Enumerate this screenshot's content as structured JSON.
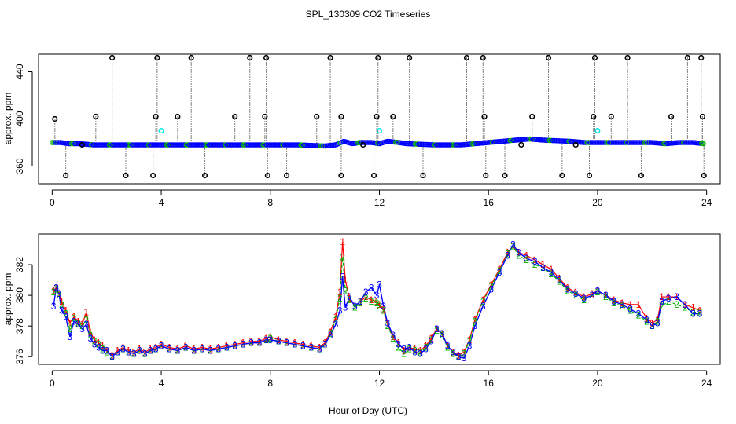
{
  "title": "SPL_130309  CO2 Timeseries",
  "colors": {
    "background": "#ffffff",
    "axis": "#000000",
    "point_blue": "#0000ff",
    "point_green": "#00b000",
    "point_cyan": "#00e5e5",
    "outlier": "#000000",
    "series_1": "#ff0000",
    "series_2": "#00b000",
    "series_3": "#0000ff"
  },
  "chart_data": [
    {
      "type": "scatter",
      "panel": "top",
      "xlabel": "",
      "ylabel": "approx. ppm",
      "xlim": [
        -0.5,
        24.5
      ],
      "ylim": [
        345,
        455
      ],
      "x_ticks": [
        0,
        4,
        8,
        12,
        16,
        20,
        24
      ],
      "x_tick_labels": [
        "0",
        "4",
        "8",
        "12",
        "16",
        "20",
        "24"
      ],
      "y_ticks": [
        360,
        400,
        440
      ],
      "y_tick_labels": [
        "360",
        "400",
        "440"
      ],
      "baseline": {
        "x": [
          0,
          0.3,
          0.6,
          1,
          1.5,
          2,
          3,
          4,
          5,
          6,
          7,
          7.8,
          8.5,
          9,
          10,
          10.4,
          10.7,
          11,
          11.3,
          11.7,
          12,
          12.3,
          12.7,
          13,
          14,
          15,
          15.5,
          16,
          17,
          17.5,
          18,
          19,
          19.5,
          20,
          21,
          22,
          22.5,
          23,
          23.5,
          23.9
        ],
        "y": [
          380,
          380,
          379,
          379,
          378,
          378,
          378,
          378,
          378,
          378,
          378,
          378,
          378,
          378,
          377,
          378,
          381,
          379,
          380,
          380,
          379,
          381,
          380,
          379,
          378,
          378,
          379,
          380,
          382,
          383,
          382,
          381,
          380,
          380,
          380,
          380,
          379,
          380,
          380,
          379
        ]
      },
      "outliers": {
        "x": [
          0.1,
          1.6,
          2.2,
          3.8,
          3.85,
          4.6,
          5.1,
          6.7,
          7.25,
          7.8,
          7.85,
          9.7,
          10.2,
          10.6,
          11.9,
          11.95,
          12.5,
          13.1,
          15.2,
          15.8,
          15.85,
          17.6,
          18.2,
          19.85,
          19.9,
          20.5,
          21.1,
          22.7,
          23.3,
          23.8,
          23.85,
          0.5,
          2.7,
          3.7,
          5.6,
          7.9,
          8.6,
          10.6,
          11.8,
          13.6,
          15.9,
          16.6,
          18.7,
          19.7,
          21.6,
          23.9,
          1.1,
          11.4,
          17.2,
          19.2
        ],
        "y": [
          400,
          402,
          452,
          402,
          452,
          402,
          452,
          402,
          452,
          402,
          452,
          402,
          452,
          402,
          402,
          452,
          402,
          452,
          452,
          452,
          402,
          402,
          452,
          402,
          452,
          402,
          452,
          402,
          452,
          452,
          402,
          352,
          352,
          352,
          352,
          352,
          352,
          352,
          352,
          352,
          352,
          352,
          352,
          352,
          352,
          352,
          378,
          378,
          378,
          378
        ]
      },
      "cyan_points": {
        "x": [
          4.0,
          12.0,
          20.0
        ],
        "y": [
          390,
          390,
          390
        ]
      }
    },
    {
      "type": "line",
      "panel": "bottom",
      "xlabel": "Hour of Day (UTC)",
      "ylabel": "approx. ppm",
      "xlim": [
        -0.5,
        24.5
      ],
      "ylim": [
        375.5,
        384
      ],
      "x_ticks": [
        0,
        4,
        8,
        12,
        16,
        20,
        24
      ],
      "x_tick_labels": [
        "0",
        "4",
        "8",
        "12",
        "16",
        "20",
        "24"
      ],
      "y_ticks": [
        376,
        378,
        380,
        382
      ],
      "y_tick_labels": [
        "376",
        "378",
        "380",
        "382"
      ],
      "series": [
        {
          "name": "3",
          "x": [
            0.05,
            0.15,
            0.25,
            0.35,
            0.5,
            0.65,
            0.8,
            0.95,
            1.1,
            1.25,
            1.4,
            1.55,
            1.7,
            1.85,
            2.0,
            2.2,
            2.4,
            2.6,
            2.8,
            3.0,
            3.2,
            3.4,
            3.6,
            3.8,
            4.0,
            4.3,
            4.6,
            4.9,
            5.2,
            5.5,
            5.8,
            6.1,
            6.4,
            6.7,
            7.0,
            7.3,
            7.6,
            7.85,
            8.0,
            8.3,
            8.6,
            8.9,
            9.2,
            9.5,
            9.8,
            10.0,
            10.2,
            10.4,
            10.55,
            10.65,
            10.75,
            10.9,
            11.1,
            11.3,
            11.5,
            11.7,
            11.9,
            12.0,
            12.15,
            12.3,
            12.5,
            12.7,
            12.9,
            13.1,
            13.3,
            13.5,
            13.7,
            13.9,
            14.1,
            14.3,
            14.5,
            14.7,
            14.9,
            15.1,
            15.3,
            15.5,
            15.8,
            16.1,
            16.4,
            16.7,
            16.9,
            17.1,
            17.4,
            17.7,
            18.0,
            18.3,
            18.6,
            18.9,
            19.2,
            19.5,
            19.8,
            20.0,
            20.3,
            20.6,
            20.9,
            21.2,
            21.5,
            21.8,
            22.0,
            22.2,
            22.35,
            22.6,
            22.9,
            23.2,
            23.5,
            23.75
          ],
          "y": [
            379.3,
            380.5,
            380.1,
            379.0,
            378.6,
            377.3,
            378.3,
            378.1,
            377.8,
            378.1,
            377.2,
            376.8,
            376.6,
            376.4,
            376.4,
            376.0,
            376.3,
            376.5,
            376.3,
            376.2,
            376.4,
            376.2,
            376.4,
            376.5,
            376.7,
            376.5,
            376.4,
            376.6,
            376.4,
            376.5,
            376.4,
            376.5,
            376.6,
            376.7,
            376.8,
            376.9,
            376.9,
            377.1,
            377.1,
            377.0,
            376.9,
            376.8,
            376.7,
            376.6,
            376.5,
            376.8,
            377.4,
            378.1,
            379.0,
            381.2,
            379.2,
            379.9,
            379.3,
            379.6,
            380.2,
            380.5,
            380.0,
            380.7,
            379.3,
            378.2,
            377.4,
            376.8,
            376.5,
            376.6,
            376.3,
            376.2,
            376.5,
            377.0,
            377.8,
            377.5,
            376.7,
            376.3,
            376.0,
            375.9,
            376.7,
            378.0,
            379.3,
            380.4,
            381.5,
            382.6,
            383.3,
            382.8,
            382.4,
            382.2,
            381.8,
            381.5,
            381.0,
            380.4,
            380.1,
            379.8,
            380.0,
            380.3,
            380.0,
            379.6,
            379.4,
            379.1,
            378.8,
            378.4,
            378.0,
            378.2,
            379.6,
            379.8,
            379.9,
            379.4,
            378.8,
            378.8
          ]
        },
        {
          "name": "2",
          "x": [
            0.05,
            0.15,
            0.25,
            0.35,
            0.5,
            0.65,
            0.8,
            0.95,
            1.1,
            1.25,
            1.4,
            1.55,
            1.7,
            1.85,
            2.0,
            2.2,
            2.4,
            2.6,
            2.8,
            3.0,
            3.2,
            3.4,
            3.6,
            3.8,
            4.0,
            4.3,
            4.6,
            4.9,
            5.2,
            5.5,
            5.8,
            6.1,
            6.4,
            6.7,
            7.0,
            7.3,
            7.6,
            7.85,
            8.0,
            8.3,
            8.6,
            8.9,
            9.2,
            9.5,
            9.8,
            10.0,
            10.2,
            10.4,
            10.55,
            10.65,
            10.75,
            10.9,
            11.1,
            11.3,
            11.5,
            11.7,
            11.9,
            12.0,
            12.15,
            12.3,
            12.5,
            12.7,
            12.9,
            13.1,
            13.3,
            13.5,
            13.7,
            13.9,
            14.1,
            14.3,
            14.5,
            14.7,
            14.9,
            15.1,
            15.3,
            15.5,
            15.8,
            16.1,
            16.4,
            16.7,
            16.9,
            17.1,
            17.4,
            17.7,
            18.0,
            18.3,
            18.6,
            18.9,
            19.2,
            19.5,
            19.8,
            20.0,
            20.3,
            20.6,
            20.9,
            21.2,
            21.5,
            21.8,
            22.0,
            22.2,
            22.35,
            22.6,
            22.9,
            23.2,
            23.5,
            23.75
          ],
          "y": [
            380.2,
            380.4,
            380.0,
            379.4,
            378.8,
            377.8,
            378.5,
            378.2,
            378.0,
            378.4,
            377.4,
            377.0,
            376.8,
            376.5,
            376.3,
            376.0,
            376.3,
            376.5,
            376.3,
            376.2,
            376.4,
            376.2,
            376.4,
            376.5,
            376.7,
            376.5,
            376.4,
            376.6,
            376.4,
            376.5,
            376.4,
            376.5,
            376.6,
            376.7,
            376.8,
            376.9,
            376.9,
            377.1,
            377.2,
            377.0,
            376.9,
            376.8,
            376.7,
            376.6,
            376.5,
            376.8,
            377.5,
            378.4,
            379.8,
            382.5,
            380.3,
            379.7,
            379.2,
            379.5,
            379.8,
            379.6,
            379.5,
            379.3,
            379.0,
            378.0,
            377.2,
            376.6,
            376.2,
            376.5,
            376.4,
            376.3,
            376.6,
            377.1,
            377.7,
            377.4,
            376.6,
            376.2,
            376.0,
            376.2,
            377.0,
            378.3,
            379.6,
            380.6,
            381.6,
            382.7,
            383.2,
            382.6,
            382.3,
            382.0,
            381.8,
            381.4,
            380.9,
            380.3,
            380.0,
            379.7,
            380.0,
            380.2,
            379.9,
            379.5,
            379.3,
            379.0,
            378.7,
            378.3,
            378.0,
            378.3,
            379.3,
            379.6,
            379.4,
            379.2,
            378.9,
            378.9
          ]
        },
        {
          "name": "1",
          "x": [
            0.05,
            0.15,
            0.25,
            0.35,
            0.5,
            0.65,
            0.8,
            0.95,
            1.1,
            1.25,
            1.4,
            1.55,
            1.7,
            1.85,
            2.0,
            2.2,
            2.4,
            2.6,
            2.8,
            3.0,
            3.2,
            3.4,
            3.6,
            3.8,
            4.0,
            4.3,
            4.6,
            4.9,
            5.2,
            5.5,
            5.8,
            6.1,
            6.4,
            6.7,
            7.0,
            7.3,
            7.6,
            7.85,
            8.0,
            8.3,
            8.6,
            8.9,
            9.2,
            9.5,
            9.8,
            10.0,
            10.2,
            10.4,
            10.55,
            10.65,
            10.75,
            10.9,
            11.1,
            11.3,
            11.5,
            11.7,
            11.9,
            12.0,
            12.15,
            12.3,
            12.5,
            12.7,
            12.9,
            13.1,
            13.3,
            13.5,
            13.7,
            13.9,
            14.1,
            14.3,
            14.5,
            14.7,
            14.9,
            15.1,
            15.3,
            15.5,
            15.8,
            16.1,
            16.4,
            16.7,
            16.9,
            17.1,
            17.4,
            17.7,
            18.0,
            18.3,
            18.6,
            18.9,
            19.2,
            19.5,
            19.8,
            20.0,
            20.3,
            20.6,
            20.9,
            21.2,
            21.5,
            21.8,
            22.0,
            22.2,
            22.35,
            22.6,
            22.9,
            23.2,
            23.5,
            23.75
          ],
          "y": [
            380.3,
            380.5,
            380.1,
            379.6,
            379.0,
            378.2,
            378.6,
            378.3,
            378.1,
            378.9,
            377.6,
            377.1,
            376.9,
            376.7,
            376.4,
            376.1,
            376.4,
            376.6,
            376.4,
            376.3,
            376.5,
            376.3,
            376.5,
            376.6,
            376.8,
            376.6,
            376.5,
            376.7,
            376.5,
            376.6,
            376.5,
            376.6,
            376.7,
            376.8,
            376.9,
            377.0,
            377.0,
            377.2,
            377.3,
            377.1,
            377.0,
            376.9,
            376.8,
            376.7,
            376.6,
            376.9,
            377.6,
            378.6,
            380.2,
            383.5,
            381.0,
            379.8,
            379.3,
            379.6,
            379.9,
            379.7,
            379.6,
            379.4,
            379.1,
            378.1,
            377.3,
            376.9,
            376.4,
            376.6,
            376.5,
            376.4,
            376.7,
            377.2,
            377.8,
            377.5,
            376.7,
            376.3,
            376.1,
            376.3,
            377.1,
            378.4,
            379.7,
            380.7,
            381.7,
            382.8,
            383.2,
            382.8,
            382.6,
            382.3,
            382.0,
            381.7,
            381.1,
            380.5,
            380.2,
            379.9,
            380.1,
            380.3,
            380.0,
            379.7,
            379.5,
            379.4,
            379.4,
            378.5,
            378.2,
            378.4,
            379.9,
            379.9,
            379.9,
            379.4,
            379.2,
            379.0
          ]
        }
      ]
    }
  ]
}
